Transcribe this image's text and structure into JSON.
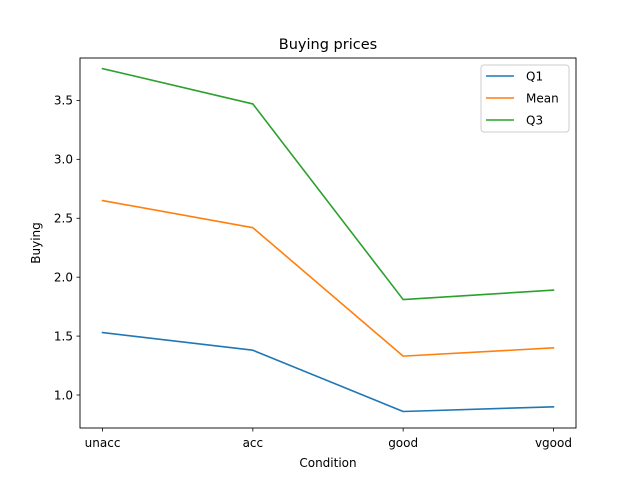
{
  "chart_data": {
    "type": "line",
    "title": "Buying prices",
    "xlabel": "Condition",
    "ylabel": "Buying",
    "categories": [
      "unacc",
      "acc",
      "good",
      "vgood"
    ],
    "y_ticks": [
      "1.0",
      "1.5",
      "2.0",
      "2.5",
      "3.0",
      "3.5"
    ],
    "ylim": [
      0.72,
      3.86
    ],
    "legend_position": "top-right",
    "grid": false,
    "series": [
      {
        "name": "Q1",
        "color": "#1f77b4",
        "values": [
          1.53,
          1.38,
          0.86,
          0.9
        ]
      },
      {
        "name": "Mean",
        "color": "#ff7f0e",
        "values": [
          2.65,
          2.42,
          1.33,
          1.4
        ]
      },
      {
        "name": "Q3",
        "color": "#2ca02c",
        "values": [
          3.77,
          3.47,
          1.81,
          1.89
        ]
      }
    ]
  }
}
